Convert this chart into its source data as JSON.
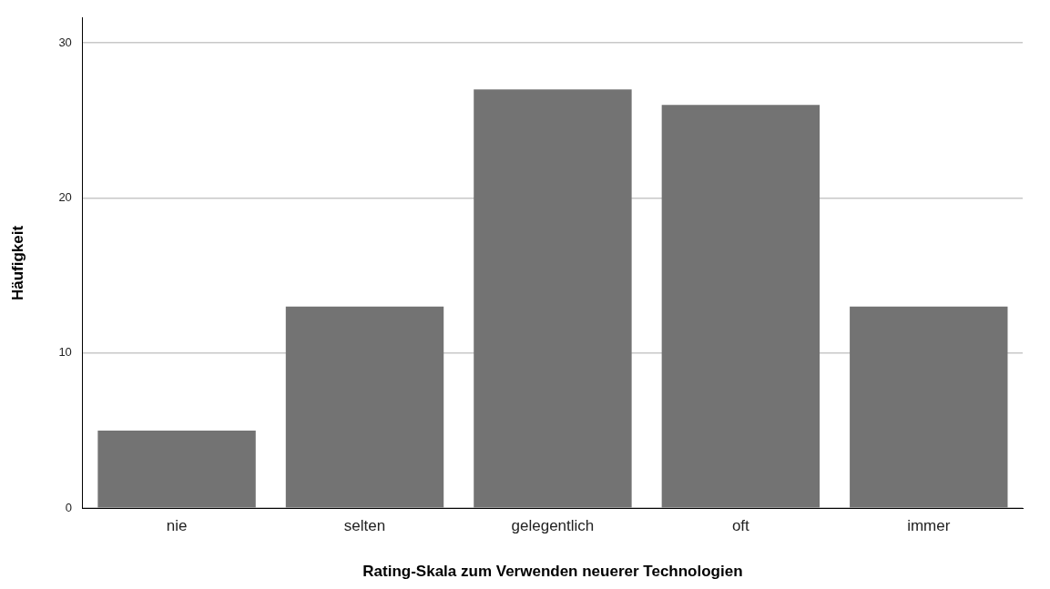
{
  "chart_data": {
    "type": "bar",
    "xlabel": "Rating-Skala zum Verwenden neuerer Technologien",
    "ylabel": "Häufigkeit",
    "categories": [
      "nie",
      "selten",
      "gelegentlich",
      "oft",
      "immer"
    ],
    "values": [
      5,
      13,
      27,
      26,
      13
    ],
    "color": "#737373",
    "ylim": [
      0,
      31.6
    ],
    "yticks": [
      0,
      10,
      20,
      30
    ],
    "grid": "y"
  }
}
